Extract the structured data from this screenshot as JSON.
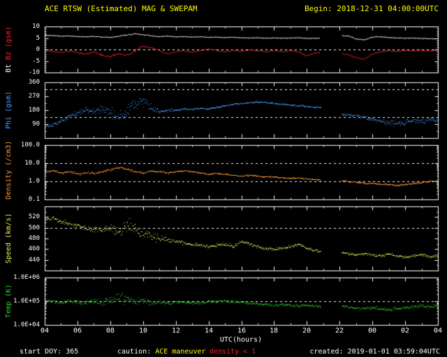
{
  "header": {
    "title": "ACE RTSW (Estimated) MAG & SWEPAM",
    "begin": "Begin: 2018-12-31 04:00:00UTC"
  },
  "footer": {
    "start_doy": "start DOY: 365",
    "caution_label": "caution:",
    "caution_value": "ACE maneuver",
    "density_flag": "density < 1",
    "created": "created: 2019-01-01 03:59:04UTC"
  },
  "colors": {
    "background": "#000000",
    "frame": "#ffffff",
    "title": "#ffff00",
    "bt": "#ffffff",
    "bz": "#ff2020",
    "phi": "#4a9eff",
    "density": "#ff9933",
    "speed": "#e8e860",
    "temp": "#33cc33",
    "caution": "#ffff00",
    "density_flag": "#ff2020"
  },
  "x_axis": {
    "label": "UTC(hours)",
    "range": [
      4,
      28
    ],
    "major_tick_hours": [
      4,
      6,
      8,
      10,
      12,
      14,
      16,
      18,
      20,
      22,
      24,
      26,
      28
    ],
    "tick_labels": [
      "04",
      "06",
      "08",
      "10",
      "12",
      "14",
      "16",
      "18",
      "20",
      "22",
      "00",
      "02",
      "04"
    ]
  },
  "panels": [
    {
      "id": "mag",
      "label_parts": [
        {
          "text": "Bt ",
          "color": "#ffffff"
        },
        {
          "text": "Bz ",
          "color": "#ff2020"
        },
        {
          "text": "(gsm)",
          "color": "#ff2020"
        }
      ],
      "scale": "linear",
      "range": [
        -10,
        10
      ],
      "minor_step": 1,
      "ref_lines": [
        0
      ],
      "ticks": [
        {
          "v": 10,
          "label": "10"
        },
        {
          "v": 5,
          "label": "5"
        },
        {
          "v": 0,
          "label": "0"
        },
        {
          "v": -5,
          "label": "-5"
        },
        {
          "v": -10,
          "label": "-10"
        }
      ]
    },
    {
      "id": "phi",
      "label_parts": [
        {
          "text": "Phi ",
          "color": "#4a9eff"
        },
        {
          "text": "(gsm)",
          "color": "#4a9eff"
        }
      ],
      "scale": "linear",
      "range": [
        0,
        360
      ],
      "minor_step": 45,
      "ref_lines": [
        135,
        315
      ],
      "ticks": [
        {
          "v": 360,
          "label": "360"
        },
        {
          "v": 270,
          "label": "270"
        },
        {
          "v": 180,
          "label": "180"
        },
        {
          "v": 90,
          "label": "90"
        }
      ]
    },
    {
      "id": "density",
      "label_parts": [
        {
          "text": "Density ",
          "color": "#ff9933"
        },
        {
          "text": "(/cm3)",
          "color": "#ff9933"
        }
      ],
      "scale": "log",
      "range": [
        0.1,
        100
      ],
      "ref_lines": [
        10,
        1
      ],
      "ticks": [
        {
          "v": 100,
          "label": "100.0"
        },
        {
          "v": 10,
          "label": "10.0"
        },
        {
          "v": 1,
          "label": "1.0"
        },
        {
          "v": 0.1,
          "label": "0.1"
        }
      ]
    },
    {
      "id": "speed",
      "label_parts": [
        {
          "text": "Speed ",
          "color": "#e8e860"
        },
        {
          "text": "(km/s)",
          "color": "#e8e860"
        }
      ],
      "scale": "linear",
      "range": [
        420,
        540
      ],
      "minor_step": 10,
      "ref_lines": [
        500
      ],
      "ticks": [
        {
          "v": 520,
          "label": "520"
        },
        {
          "v": 500,
          "label": "500"
        },
        {
          "v": 480,
          "label": "480"
        },
        {
          "v": 460,
          "label": "460"
        },
        {
          "v": 440,
          "label": "440"
        }
      ]
    },
    {
      "id": "temp",
      "label_parts": [
        {
          "text": "Temp ",
          "color": "#33cc33"
        },
        {
          "text": "(K)",
          "color": "#33cc33"
        }
      ],
      "scale": "log",
      "range": [
        10000,
        1000000
      ],
      "ref_lines": [
        100000
      ],
      "ticks": [
        {
          "v": 1000000,
          "label": "1.0E+06"
        },
        {
          "v": 100000,
          "label": "1.0E+05"
        },
        {
          "v": 10000,
          "label": "1.0E+04"
        }
      ]
    }
  ],
  "chart_data": {
    "type": "line",
    "title": "ACE RTSW (Estimated) MAG & SWEPAM",
    "begin_utc": "2018-12-31 04:00:00UTC",
    "created_utc": "2019-01-01 03:59:04UTC",
    "x_label": "UTC(hours)",
    "x_range_hours": [
      4,
      28
    ],
    "gaps": [
      [
        20.85,
        22.1
      ]
    ],
    "x_hours": [
      4,
      4.5,
      5,
      5.5,
      6,
      6.5,
      7,
      7.5,
      8,
      8.5,
      9,
      9.5,
      10,
      10.5,
      11,
      11.5,
      12,
      12.5,
      13,
      13.5,
      14,
      14.5,
      15,
      15.5,
      16,
      16.5,
      17,
      17.5,
      18,
      18.5,
      19,
      19.5,
      20,
      20.5,
      21,
      21.5,
      22,
      22.5,
      23,
      23.5,
      24,
      24.5,
      25,
      25.5,
      26,
      26.5,
      27,
      27.5,
      28
    ],
    "series": [
      {
        "name": "Bt",
        "panel": 0,
        "color": "#ffffff",
        "style": "line",
        "values": [
          6.2,
          6.0,
          5.8,
          5.9,
          5.6,
          5.5,
          5.7,
          5.4,
          5.2,
          5.8,
          6.3,
          6.8,
          6.5,
          5.9,
          5.6,
          5.8,
          5.5,
          5.6,
          5.4,
          5.5,
          5.3,
          5.4,
          5.2,
          5.3,
          5.1,
          5.0,
          5.1,
          4.9,
          5.0,
          4.9,
          5.0,
          5.1,
          4.8,
          4.9,
          5.0,
          5.2,
          5.9,
          6.0,
          4.6,
          4.2,
          5.3,
          5.5,
          5.2,
          5.0,
          4.9,
          5.0,
          4.8,
          4.7,
          4.6
        ]
      },
      {
        "name": "Bz",
        "panel": 0,
        "color": "#ff2020",
        "style": "line",
        "values": [
          -0.3,
          -0.8,
          -1.2,
          -0.6,
          -1.5,
          -2.0,
          -1.0,
          -2.5,
          -3.2,
          -1.5,
          -2.8,
          -0.5,
          1.5,
          0.8,
          -0.5,
          -1.8,
          -1.0,
          -0.4,
          -1.2,
          -0.6,
          0.2,
          -0.5,
          -1.0,
          -0.3,
          -0.8,
          -0.2,
          -0.6,
          -1.0,
          -0.5,
          -0.9,
          -0.4,
          -1.2,
          -2.8,
          -1.5,
          -1.0,
          -1.0,
          -1.8,
          -2.2,
          -3.5,
          -4.3,
          -2.0,
          -1.0,
          -0.5,
          -0.8,
          -0.4,
          -0.7,
          -0.3,
          -0.6,
          -0.4
        ]
      },
      {
        "name": "Phi",
        "panel": 1,
        "color": "#4a9eff",
        "style": "dots",
        "values": [
          75,
          85,
          110,
          140,
          165,
          180,
          170,
          190,
          160,
          140,
          180,
          220,
          240,
          200,
          170,
          185,
          180,
          190,
          185,
          195,
          190,
          200,
          210,
          220,
          225,
          230,
          235,
          230,
          225,
          220,
          215,
          210,
          205,
          200,
          200,
          190,
          160,
          150,
          145,
          135,
          120,
          110,
          100,
          95,
          105,
          115,
          110,
          120,
          115
        ]
      },
      {
        "name": "Density",
        "panel": 2,
        "color": "#ff9933",
        "style": "dots",
        "values": [
          3.5,
          4.0,
          3.0,
          3.5,
          2.5,
          3.0,
          2.8,
          3.5,
          4.5,
          6.0,
          5.0,
          3.5,
          3.0,
          4.0,
          3.5,
          3.0,
          3.5,
          4.0,
          3.5,
          3.0,
          2.5,
          2.8,
          2.5,
          2.2,
          2.0,
          2.2,
          2.0,
          1.8,
          1.8,
          1.6,
          1.5,
          1.6,
          1.4,
          1.3,
          1.2,
          1.2,
          1.1,
          1.0,
          0.9,
          0.8,
          0.8,
          0.7,
          0.7,
          0.6,
          0.7,
          0.8,
          0.9,
          1.0,
          1.1
        ]
      },
      {
        "name": "Speed",
        "panel": 3,
        "color": "#e8e860",
        "style": "dots",
        "values": [
          515,
          518,
          512,
          508,
          505,
          500,
          498,
          495,
          500,
          495,
          505,
          498,
          490,
          485,
          480,
          478,
          475,
          472,
          470,
          468,
          465,
          468,
          470,
          465,
          475,
          470,
          465,
          462,
          460,
          462,
          465,
          470,
          462,
          458,
          455,
          455,
          455,
          452,
          450,
          452,
          450,
          448,
          452,
          448,
          445,
          448,
          450,
          446,
          448
        ]
      },
      {
        "name": "Temp",
        "panel": 4,
        "color": "#33cc33",
        "style": "dots",
        "values": [
          110000,
          100000,
          90000,
          105000,
          95000,
          85000,
          100000,
          90000,
          120000,
          150000,
          130000,
          110000,
          100000,
          90000,
          95000,
          85000,
          90000,
          95000,
          85000,
          90000,
          95000,
          100000,
          105000,
          95000,
          90000,
          85000,
          80000,
          75000,
          70000,
          75000,
          70000,
          65000,
          70000,
          65000,
          60000,
          60000,
          65000,
          60000,
          55000,
          50000,
          55000,
          50000,
          45000,
          50000,
          55000,
          60000,
          65000,
          60000,
          70000
        ]
      }
    ],
    "noise_envelopes": {
      "Bt": {
        "t": [
          4,
          8,
          9,
          11,
          14,
          20,
          23,
          28
        ],
        "amp": [
          0.15,
          0.3,
          0.45,
          0.2,
          0.12,
          0.12,
          0.25,
          0.15
        ]
      },
      "Bz": {
        "t": [
          4,
          7,
          9,
          11,
          14,
          19,
          21,
          24,
          28
        ],
        "amp": [
          0.3,
          0.7,
          0.9,
          0.5,
          0.3,
          0.4,
          0.5,
          0.35,
          0.25
        ]
      },
      "Phi": {
        "t": [
          4,
          7,
          8,
          9.5,
          11,
          12,
          20,
          22,
          24,
          25,
          28
        ],
        "amp": [
          15,
          25,
          50,
          60,
          30,
          8,
          8,
          10,
          18,
          25,
          22
        ]
      },
      "Density": {
        "t": [
          4,
          8,
          10,
          12,
          20,
          28
        ],
        "amp": [
          0.07,
          0.11,
          0.08,
          0.06,
          0.05,
          0.07
        ]
      },
      "Speed": {
        "t": [
          4,
          7,
          8,
          9.5,
          11,
          12,
          16,
          20,
          22,
          28
        ],
        "amp": [
          4,
          8,
          16,
          18,
          10,
          5,
          4,
          4,
          3,
          4
        ]
      },
      "Temp": {
        "t": [
          4,
          7,
          8,
          9.5,
          11,
          12,
          20,
          28
        ],
        "amp": [
          0.08,
          0.15,
          0.26,
          0.3,
          0.12,
          0.09,
          0.08,
          0.11
        ]
      }
    },
    "render": {
      "seed": 20181231,
      "samples_per_interval": 16,
      "line_samples_per_interval": 10
    }
  }
}
